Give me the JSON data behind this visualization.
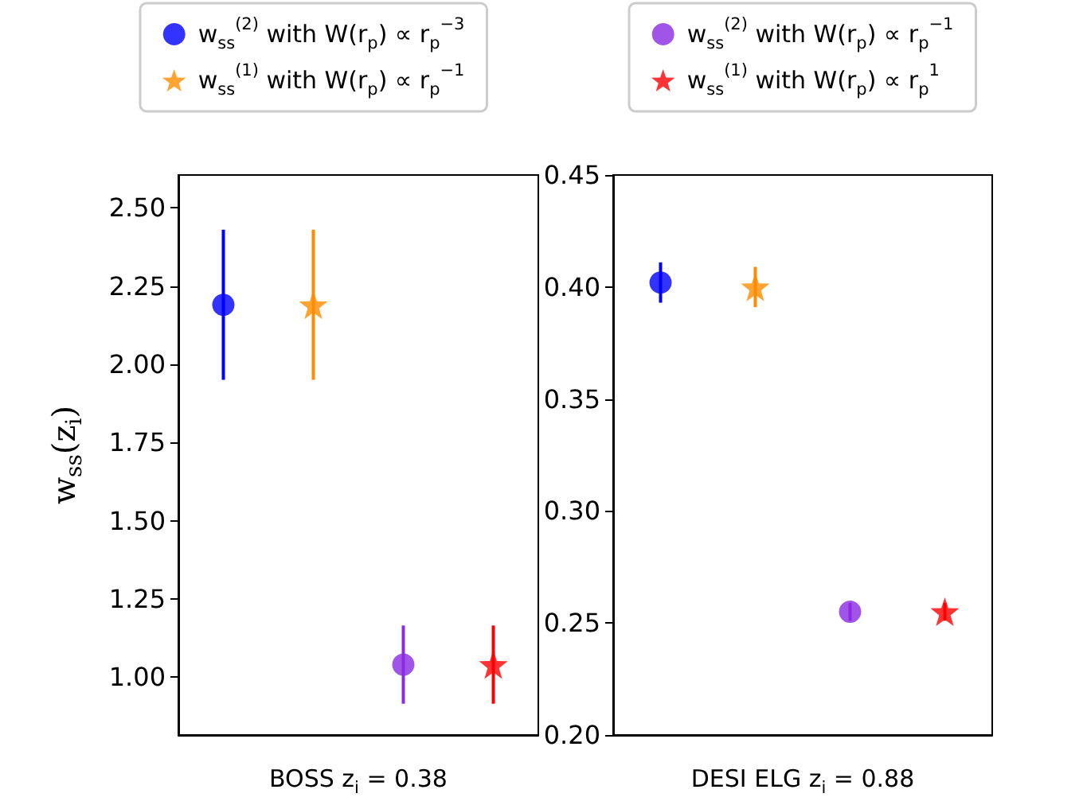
{
  "chart_data": [
    {
      "type": "scatter",
      "xlabel": "BOSS z$_{i}$ = 0.38",
      "ylabel": "w$_{ss}$(z$_{i}$)",
      "categories": [
        null,
        null,
        null,
        null
      ],
      "ylim": [
        0.815,
        2.605
      ],
      "yticks": [
        {
          "value": 1,
          "label": "1.00"
        },
        {
          "value": 1.25,
          "label": "1.25"
        },
        {
          "value": 1.5,
          "label": "1.50"
        },
        {
          "value": 1.75,
          "label": "1.75"
        },
        {
          "value": 2,
          "label": "2.00"
        },
        {
          "value": 2.25,
          "label": "2.25"
        },
        {
          "value": 2.5,
          "label": "2.50"
        }
      ],
      "grid": false,
      "legend": "top",
      "series": [
        {
          "name": "w$_{ss}$$^{(2)}$ with W(r$_{p}$) ∝ r$_{p}$$^{−3}$",
          "color": "#0000ff",
          "marker": "circle",
          "values": [
            2.19,
            null,
            null,
            null
          ],
          "errors": [
            0.24,
            null,
            null,
            null
          ]
        },
        {
          "name": "w$_{ss}$$^{(1)}$ with W(r$_{p}$) ∝ r$_{p}$$^{−1}$",
          "color": "#ff8c00",
          "marker": "star",
          "values": [
            null,
            2.19,
            null,
            null
          ],
          "errors": [
            null,
            0.24,
            null,
            null
          ]
        },
        {
          "color": "#8a2be2",
          "marker": "circle",
          "values": [
            null,
            null,
            1.04,
            null
          ],
          "errors": [
            null,
            null,
            0.125,
            null
          ]
        },
        {
          "color": "#ff0000",
          "marker": "star",
          "values": [
            null,
            null,
            null,
            1.04
          ],
          "errors": [
            null,
            null,
            null,
            0.125
          ]
        }
      ]
    },
    {
      "type": "scatter",
      "xlabel": "DESI ELG z$_{i}$ = 0.88",
      "categories": [
        null,
        null,
        null,
        null
      ],
      "ylim": [
        0.2,
        0.45
      ],
      "yticks": [
        {
          "value": 0.2,
          "label": "0.20"
        },
        {
          "value": 0.25,
          "label": "0.25"
        },
        {
          "value": 0.3,
          "label": "0.30"
        },
        {
          "value": 0.35,
          "label": "0.35"
        },
        {
          "value": 0.4,
          "label": "0.40"
        },
        {
          "value": 0.45,
          "label": "0.45"
        }
      ],
      "grid": false,
      "legend": "top",
      "series": [
        {
          "color": "#0000ff",
          "marker": "circle",
          "values": [
            0.402,
            null,
            null,
            null
          ],
          "errors": [
            0.009,
            null,
            null,
            null
          ]
        },
        {
          "color": "#ff8c00",
          "marker": "star",
          "values": [
            null,
            0.4,
            null,
            null
          ],
          "errors": [
            null,
            0.009,
            null,
            null
          ]
        },
        {
          "name": "w$_{ss}$$^{(2)}$ with W(r$_{p}$) ∝ r$_{p}$$^{−1}$",
          "color": "#8a2be2",
          "marker": "circle",
          "values": [
            null,
            null,
            0.255,
            null
          ],
          "errors": [
            null,
            null,
            0.004,
            null
          ]
        },
        {
          "name": "w$_{ss}$$^{(1)}$ with W(r$_{p}$) ∝ r$_{p}$$^{1}$",
          "color": "#ff0000",
          "marker": "star",
          "values": [
            null,
            null,
            null,
            0.255
          ],
          "errors": [
            null,
            null,
            null,
            0.004
          ]
        }
      ]
    }
  ]
}
